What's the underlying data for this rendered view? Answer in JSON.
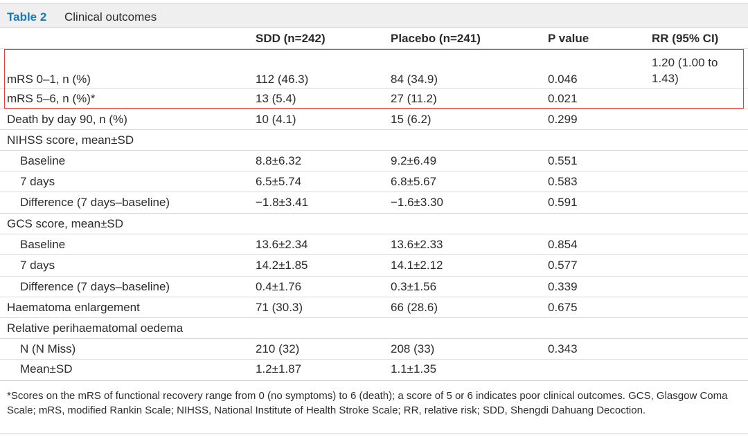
{
  "table": {
    "label": "Table 2",
    "title": "Clinical outcomes",
    "headers": [
      "",
      "SDD (n=242)",
      "Placebo (n=241)",
      "P value",
      "RR (95% CI)"
    ],
    "rows": [
      {
        "label": "mRS 0–1, n (%)",
        "sdd": "112 (46.3)",
        "placebo": "84 (34.9)",
        "p": "0.046",
        "rr_line1": "1.20 (1.00 to",
        "rr_line2": "1.43)"
      },
      {
        "label": "mRS 5–6, n (%)*",
        "sdd": "13 (5.4)",
        "placebo": "27 (11.2)",
        "p": "0.021"
      },
      {
        "label": "Death by day 90, n (%)",
        "sdd": "10 (4.1)",
        "placebo": "15 (6.2)",
        "p": "0.299"
      },
      {
        "label": "NIHSS score, mean±SD"
      },
      {
        "label": "Baseline",
        "sdd": "8.8±6.32",
        "placebo": "9.2±6.49",
        "p": "0.551"
      },
      {
        "label": "7 days",
        "sdd": "6.5±5.74",
        "placebo": "6.8±5.67",
        "p": "0.583"
      },
      {
        "label": "Difference (7 days–baseline)",
        "sdd": "−1.8±3.41",
        "placebo": "−1.6±3.30",
        "p": "0.591"
      },
      {
        "label": "GCS score, mean±SD"
      },
      {
        "label": "Baseline",
        "sdd": "13.6±2.34",
        "placebo": "13.6±2.33",
        "p": "0.854"
      },
      {
        "label": "7 days",
        "sdd": "14.2±1.85",
        "placebo": "14.1±2.12",
        "p": "0.577"
      },
      {
        "label": "Difference (7 days–baseline)",
        "sdd": "0.4±1.76",
        "placebo": "0.3±1.56",
        "p": "0.339"
      },
      {
        "label": "Haematoma enlargement",
        "sdd": "71 (30.3)",
        "placebo": "66 (28.6)",
        "p": "0.675"
      },
      {
        "label": "Relative perihaematomal oedema"
      },
      {
        "label": "N (N Miss)",
        "sdd": "210 (32)",
        "placebo": "208 (33)",
        "p": "0.343"
      },
      {
        "label": "Mean±SD",
        "sdd": "1.2±1.87",
        "placebo": "1.1±1.35"
      }
    ],
    "footnote": "*Scores on the mRS of functional recovery range from 0 (no symptoms) to 6 (death); a score of 5 or 6 indicates poor clinical outcomes. GCS, Glasgow Coma Scale; mRS, modified Rankin Scale; NIHSS, National Institute of Health Stroke Scale; RR, relative risk; SDD, Shengdi Dahuang Decoction."
  },
  "colors": {
    "label_blue": "#1a78b4",
    "highlight_red": "#e43c3c",
    "title_bg": "#efefef"
  }
}
